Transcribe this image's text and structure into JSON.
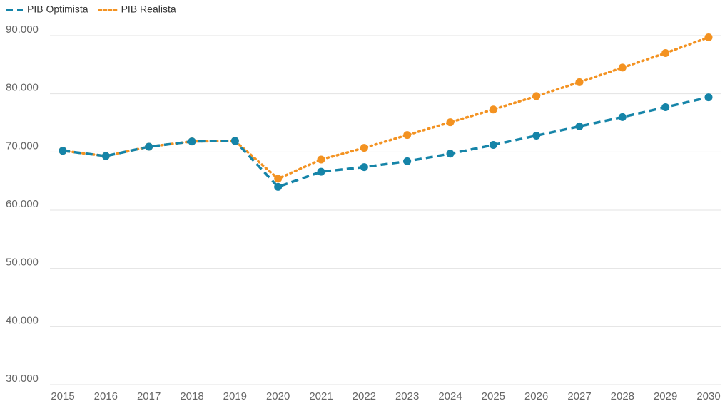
{
  "chart_data": {
    "type": "line",
    "categories": [
      "2015",
      "2016",
      "2017",
      "2018",
      "2019",
      "2020",
      "2021",
      "2022",
      "2023",
      "2024",
      "2025",
      "2026",
      "2027",
      "2028",
      "2029",
      "2030"
    ],
    "series": [
      {
        "name": "PIB Optimista",
        "color": "#1584a8",
        "style": "dashed",
        "values": [
          70200,
          69300,
          70900,
          71800,
          71900,
          64000,
          66600,
          67400,
          68400,
          69700,
          71200,
          72800,
          74400,
          76000,
          77700,
          79400
        ]
      },
      {
        "name": "PIB Realista",
        "color": "#f39221",
        "style": "dotted",
        "values": [
          70200,
          69300,
          70900,
          71800,
          71900,
          65400,
          68700,
          70700,
          72900,
          75100,
          77300,
          79600,
          82000,
          84500,
          87000,
          89700
        ]
      }
    ],
    "ylim": [
      30000,
      90000
    ],
    "yticks": [
      {
        "value": 30000,
        "label": "30.000"
      },
      {
        "value": 40000,
        "label": "40.000"
      },
      {
        "value": 50000,
        "label": "50.000"
      },
      {
        "value": 60000,
        "label": "60.000"
      },
      {
        "value": 70000,
        "label": "70.000"
      },
      {
        "value": 80000,
        "label": "80.000"
      },
      {
        "value": 90000,
        "label": "90.000"
      }
    ],
    "grid": true
  }
}
